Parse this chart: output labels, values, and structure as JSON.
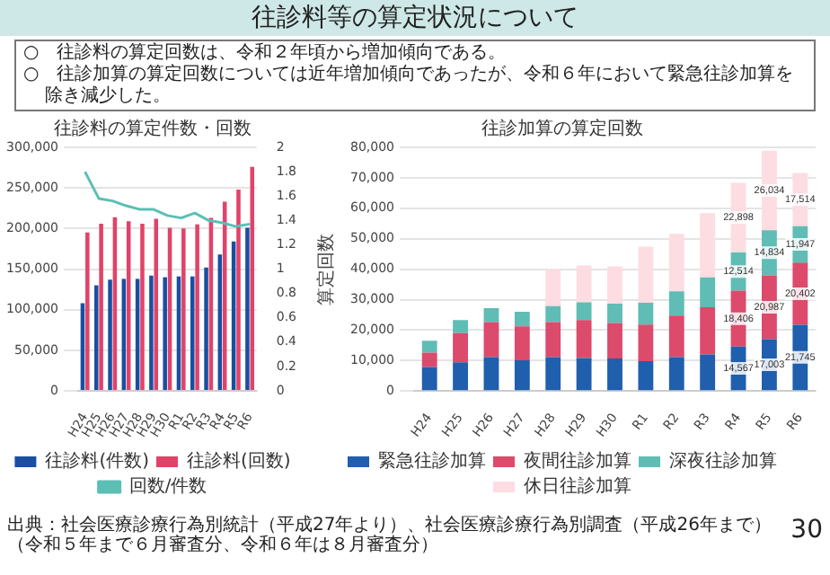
{
  "chart_data": [
    {
      "type": "bar",
      "title": "往診料の算定件数・回数",
      "annotations": [
        "往診料等の算定状況について",
        "○　往診料の算定回数は、令和２年頃から増加傾向である。",
        "○　往診加算の算定回数については近年増加傾向であったが、令和６年において緊急往診加算を除き減少した。"
      ],
      "categories": [
        "H24",
        "H25",
        "H26",
        "H27",
        "H28",
        "H29",
        "H30",
        "R1",
        "R2",
        "R3",
        "R4",
        "R5",
        "R6"
      ],
      "series": [
        {
          "name": "往診料(件数)",
          "color": "#1a4fa0",
          "values": [
            108000,
            130000,
            137000,
            138000,
            138000,
            142000,
            140000,
            141000,
            141000,
            152000,
            168000,
            184000,
            201000
          ]
        },
        {
          "name": "往診料(回数)",
          "color": "#e0436a",
          "values": [
            195000,
            206000,
            214000,
            209000,
            206000,
            212000,
            201000,
            200000,
            205000,
            213000,
            233000,
            248000,
            276000
          ]
        },
        {
          "name": "回数/件数",
          "type": "line",
          "axis": "y2",
          "color": "#5bbfb5",
          "values": [
            1.8,
            1.58,
            1.56,
            1.52,
            1.49,
            1.49,
            1.44,
            1.42,
            1.46,
            1.4,
            1.38,
            1.35,
            1.37
          ]
        }
      ],
      "ylim": [
        0,
        300000
      ],
      "yticks": [
        0,
        {
          "value": 50000,
          "label": "50,000"
        },
        {
          "value": 100000,
          "label": "100,000"
        },
        {
          "value": 150000,
          "label": "150,000"
        },
        {
          "value": 200000,
          "label": "200,000"
        },
        {
          "value": 250000,
          "label": "250,000"
        },
        {
          "value": 300000,
          "label": "300,000"
        }
      ],
      "y2lim": [
        0,
        2
      ],
      "y2ticks": [
        0,
        0.2,
        0.4,
        0.6,
        0.8,
        1,
        1.2,
        1.4,
        1.6,
        1.8,
        2
      ],
      "grid": "y",
      "legend": "bottom",
      "marker": "none"
    },
    {
      "type": "bar",
      "title": "往診加算の算定回数",
      "ylabel": "算定回数",
      "stacked": true,
      "annotations": [
        "出典：社会医療診療行為別統計（平成27年より）、社会医療診療行為別調査（平成26年まで）（令和５年まで６月審査分、令和６年は８月審査分）",
        "30"
      ],
      "categories": [
        "H24",
        "H25",
        "H26",
        "H27",
        "H28",
        "H29",
        "H30",
        "R1",
        "R2",
        "R3",
        "R4",
        "R5",
        "R6"
      ],
      "series": [
        {
          "name": "緊急往診加算",
          "color": "#1f5fad",
          "values": [
            7900,
            9400,
            11100,
            10100,
            11100,
            10800,
            10700,
            9800,
            11100,
            12000,
            14567,
            17003,
            21745
          ],
          "value_labels": [
            null,
            null,
            null,
            null,
            null,
            null,
            null,
            null,
            null,
            null,
            "14,567",
            "17,003",
            "21,745"
          ]
        },
        {
          "name": "夜間往診加算",
          "color": "#dc4a6c",
          "values": [
            4700,
            9600,
            11500,
            11100,
            11500,
            12500,
            11600,
            12000,
            13700,
            15500,
            18406,
            20987,
            20402
          ],
          "value_labels": [
            null,
            null,
            null,
            null,
            null,
            null,
            null,
            null,
            null,
            null,
            "18,406",
            "20,987",
            "20,402"
          ]
        },
        {
          "name": "深夜往診加算",
          "color": "#5fbdb5",
          "values": [
            3900,
            4300,
            4600,
            4800,
            5300,
            5800,
            6400,
            7200,
            7900,
            9800,
            12514,
            14834,
            11947
          ],
          "value_labels": [
            null,
            null,
            null,
            null,
            null,
            null,
            null,
            null,
            null,
            null,
            "12,514",
            "14,834",
            "11,947"
          ]
        },
        {
          "name": "休日往診加算",
          "color": "#fddde2",
          "values": [
            null,
            null,
            null,
            null,
            12100,
            12100,
            12200,
            18400,
            18900,
            21100,
            22898,
            26034,
            17514
          ],
          "value_labels": [
            null,
            null,
            null,
            null,
            null,
            null,
            null,
            null,
            null,
            null,
            "22,898",
            "26,034",
            "17,514"
          ]
        }
      ],
      "ylim": [
        0,
        80000
      ],
      "yticks": [
        0,
        {
          "value": 10000,
          "label": "10,000"
        },
        {
          "value": 20000,
          "label": "20,000"
        },
        {
          "value": 30000,
          "label": "30,000"
        },
        {
          "value": 40000,
          "label": "40,000"
        },
        {
          "value": 50000,
          "label": "50,000"
        },
        {
          "value": 60000,
          "label": "60,000"
        },
        {
          "value": 70000,
          "label": "70,000"
        },
        {
          "value": 80000,
          "label": "80,000"
        }
      ],
      "grid": "y",
      "legend": "bottom"
    }
  ]
}
